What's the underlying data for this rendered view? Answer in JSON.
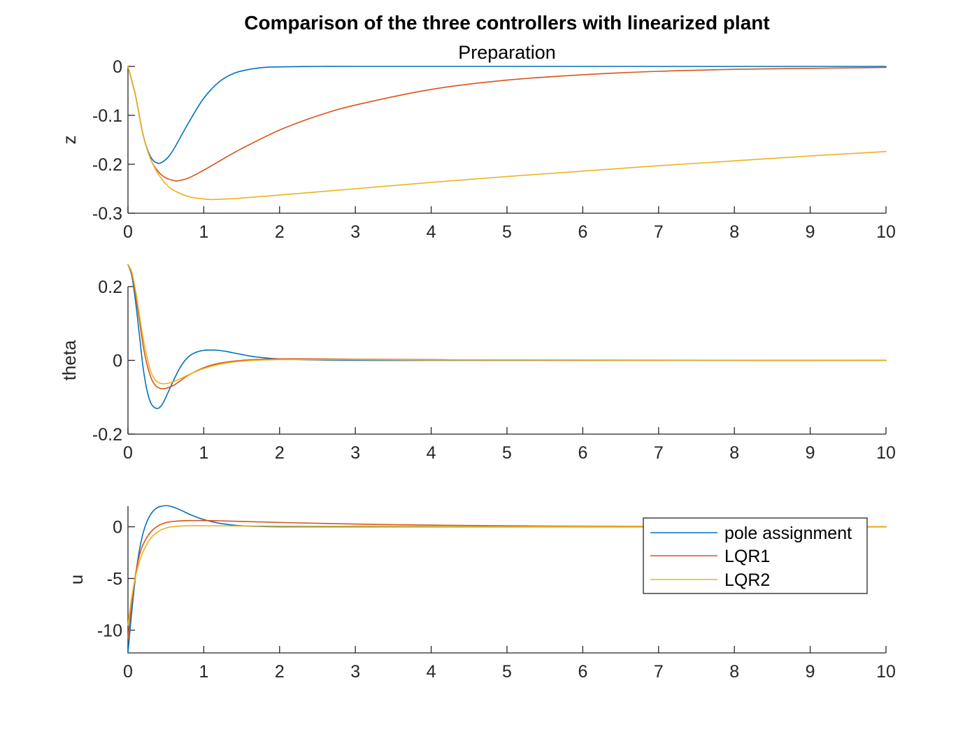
{
  "figure": {
    "title": "Comparison of the three controllers with linearized plant",
    "subtitle": "Preparation"
  },
  "colors": {
    "pole assignment": "#0072BD",
    "LQR1": "#D95319",
    "LQR2": "#EDB120",
    "axis": "#262626"
  },
  "legend": {
    "entries": [
      "pole assignment",
      "LQR1",
      "LQR2"
    ],
    "placement": "right, lower subplot"
  },
  "chart_data": [
    {
      "type": "line",
      "ylabel": "z",
      "xlim": [
        0,
        10
      ],
      "ylim": [
        -0.3,
        0
      ],
      "xticks": [
        0,
        1,
        2,
        3,
        4,
        5,
        6,
        7,
        8,
        9,
        10
      ],
      "yticks": [
        -0.3,
        -0.2,
        -0.1,
        0
      ],
      "ytick_labels": [
        "-0.3",
        "-0.2",
        "-0.1",
        "0"
      ],
      "grid": false,
      "series": [
        {
          "name": "pole assignment",
          "x": [
            0,
            0.1,
            0.2,
            0.3,
            0.4,
            0.5,
            0.6,
            0.8,
            1.0,
            1.2,
            1.4,
            1.6,
            1.8,
            2.0,
            2.5,
            3,
            4,
            5,
            6,
            7,
            8,
            9,
            10
          ],
          "y": [
            0,
            -0.06,
            -0.14,
            -0.185,
            -0.198,
            -0.19,
            -0.17,
            -0.115,
            -0.065,
            -0.032,
            -0.014,
            -0.006,
            -0.002,
            -0.001,
            0,
            0,
            0,
            0,
            0,
            0,
            0,
            0,
            0
          ]
        },
        {
          "name": "LQR1",
          "x": [
            0,
            0.1,
            0.2,
            0.3,
            0.4,
            0.5,
            0.6,
            0.65,
            0.8,
            1.0,
            1.2,
            1.5,
            2.0,
            2.5,
            3,
            4,
            5,
            6,
            7,
            8,
            9,
            10
          ],
          "y": [
            0,
            -0.06,
            -0.14,
            -0.19,
            -0.215,
            -0.228,
            -0.233,
            -0.234,
            -0.228,
            -0.212,
            -0.194,
            -0.168,
            -0.13,
            -0.101,
            -0.079,
            -0.047,
            -0.028,
            -0.017,
            -0.01,
            -0.006,
            -0.004,
            -0.002
          ]
        },
        {
          "name": "LQR2",
          "x": [
            0,
            0.1,
            0.2,
            0.3,
            0.4,
            0.5,
            0.6,
            0.8,
            1.0,
            1.1,
            1.3,
            1.5,
            2.0,
            3,
            4,
            5,
            6,
            7,
            8,
            9,
            10
          ],
          "y": [
            0,
            -0.06,
            -0.14,
            -0.19,
            -0.22,
            -0.24,
            -0.253,
            -0.266,
            -0.271,
            -0.272,
            -0.271,
            -0.269,
            -0.263,
            -0.25,
            -0.237,
            -0.225,
            -0.214,
            -0.203,
            -0.193,
            -0.183,
            -0.174
          ]
        }
      ]
    },
    {
      "type": "line",
      "ylabel": "theta",
      "xlim": [
        0,
        10
      ],
      "ylim": [
        -0.2,
        0.2
      ],
      "xticks": [
        0,
        1,
        2,
        3,
        4,
        5,
        6,
        7,
        8,
        9,
        10
      ],
      "yticks": [
        -0.2,
        0,
        0.2
      ],
      "ytick_labels": [
        "-0.2",
        "0",
        "0.2"
      ],
      "grid": false,
      "series": [
        {
          "name": "pole assignment",
          "x": [
            0,
            0.05,
            0.1,
            0.15,
            0.2,
            0.25,
            0.3,
            0.35,
            0.4,
            0.45,
            0.5,
            0.6,
            0.7,
            0.8,
            0.9,
            1.0,
            1.1,
            1.2,
            1.3,
            1.5,
            1.7,
            2.0,
            2.5,
            3,
            4,
            5,
            10
          ],
          "y": [
            0.26,
            0.23,
            0.16,
            0.07,
            -0.02,
            -0.08,
            -0.115,
            -0.128,
            -0.13,
            -0.12,
            -0.1,
            -0.055,
            -0.015,
            0.01,
            0.022,
            0.027,
            0.028,
            0.027,
            0.024,
            0.016,
            0.009,
            0.004,
            0.001,
            0,
            0,
            0,
            0
          ]
        },
        {
          "name": "LQR1",
          "x": [
            0,
            0.05,
            0.1,
            0.15,
            0.2,
            0.25,
            0.3,
            0.35,
            0.4,
            0.45,
            0.5,
            0.6,
            0.7,
            0.8,
            1.0,
            1.2,
            1.5,
            2.0,
            2.5,
            3,
            4,
            5,
            10
          ],
          "y": [
            0.26,
            0.235,
            0.18,
            0.11,
            0.04,
            -0.01,
            -0.045,
            -0.065,
            -0.074,
            -0.077,
            -0.076,
            -0.068,
            -0.054,
            -0.04,
            -0.02,
            -0.008,
            0,
            0.004,
            0.004,
            0.003,
            0.002,
            0.001,
            0
          ]
        },
        {
          "name": "LQR2",
          "x": [
            0,
            0.05,
            0.1,
            0.15,
            0.2,
            0.25,
            0.3,
            0.35,
            0.4,
            0.45,
            0.5,
            0.6,
            0.7,
            0.8,
            1.0,
            1.2,
            1.5,
            2.0,
            2.5,
            3,
            4,
            5,
            10
          ],
          "y": [
            0.26,
            0.24,
            0.19,
            0.125,
            0.06,
            0.01,
            -0.03,
            -0.05,
            -0.06,
            -0.063,
            -0.063,
            -0.058,
            -0.049,
            -0.039,
            -0.022,
            -0.011,
            -0.002,
            0.002,
            0.002,
            0.002,
            0.001,
            0.001,
            0
          ]
        }
      ]
    },
    {
      "type": "line",
      "ylabel": "u",
      "xlim": [
        0,
        10
      ],
      "ylim": [
        -12.2,
        2
      ],
      "xticks": [
        0,
        1,
        2,
        3,
        4,
        5,
        6,
        7,
        8,
        9,
        10
      ],
      "yticks": [
        -10,
        -5,
        0
      ],
      "ytick_labels": [
        "-10",
        "-5",
        "0"
      ],
      "grid": false,
      "series": [
        {
          "name": "pole assignment",
          "x": [
            0,
            0.05,
            0.1,
            0.15,
            0.2,
            0.25,
            0.3,
            0.35,
            0.4,
            0.45,
            0.5,
            0.55,
            0.6,
            0.7,
            0.8,
            0.9,
            1.0,
            1.2,
            1.5,
            2.0,
            3,
            5,
            10
          ],
          "y": [
            -12.2,
            -8.2,
            -4.8,
            -2.3,
            -0.6,
            0.5,
            1.2,
            1.65,
            1.9,
            2.0,
            2.05,
            2.0,
            1.9,
            1.6,
            1.25,
            0.95,
            0.7,
            0.35,
            0.1,
            0,
            0,
            0,
            0
          ]
        },
        {
          "name": "LQR1",
          "x": [
            0,
            0.05,
            0.1,
            0.15,
            0.2,
            0.3,
            0.4,
            0.5,
            0.6,
            0.8,
            1.0,
            1.2,
            1.5,
            2.0,
            3,
            4,
            5,
            6,
            7,
            8,
            9,
            10
          ],
          "y": [
            -10.8,
            -7.4,
            -4.6,
            -2.8,
            -1.7,
            -0.5,
            0.1,
            0.4,
            0.52,
            0.6,
            0.6,
            0.58,
            0.52,
            0.42,
            0.26,
            0.16,
            0.1,
            0.06,
            0.04,
            0.02,
            0.01,
            0
          ]
        },
        {
          "name": "LQR2",
          "x": [
            0,
            0.05,
            0.1,
            0.15,
            0.2,
            0.3,
            0.4,
            0.5,
            0.6,
            0.8,
            1.0,
            1.2,
            1.5,
            2.0,
            3,
            4,
            5,
            10
          ],
          "y": [
            -9.5,
            -6.8,
            -4.8,
            -3.4,
            -2.4,
            -1.1,
            -0.45,
            -0.12,
            0.02,
            0.1,
            0.1,
            0.09,
            0.08,
            0.06,
            0.05,
            0.04,
            0.03,
            0.01
          ]
        }
      ]
    }
  ]
}
